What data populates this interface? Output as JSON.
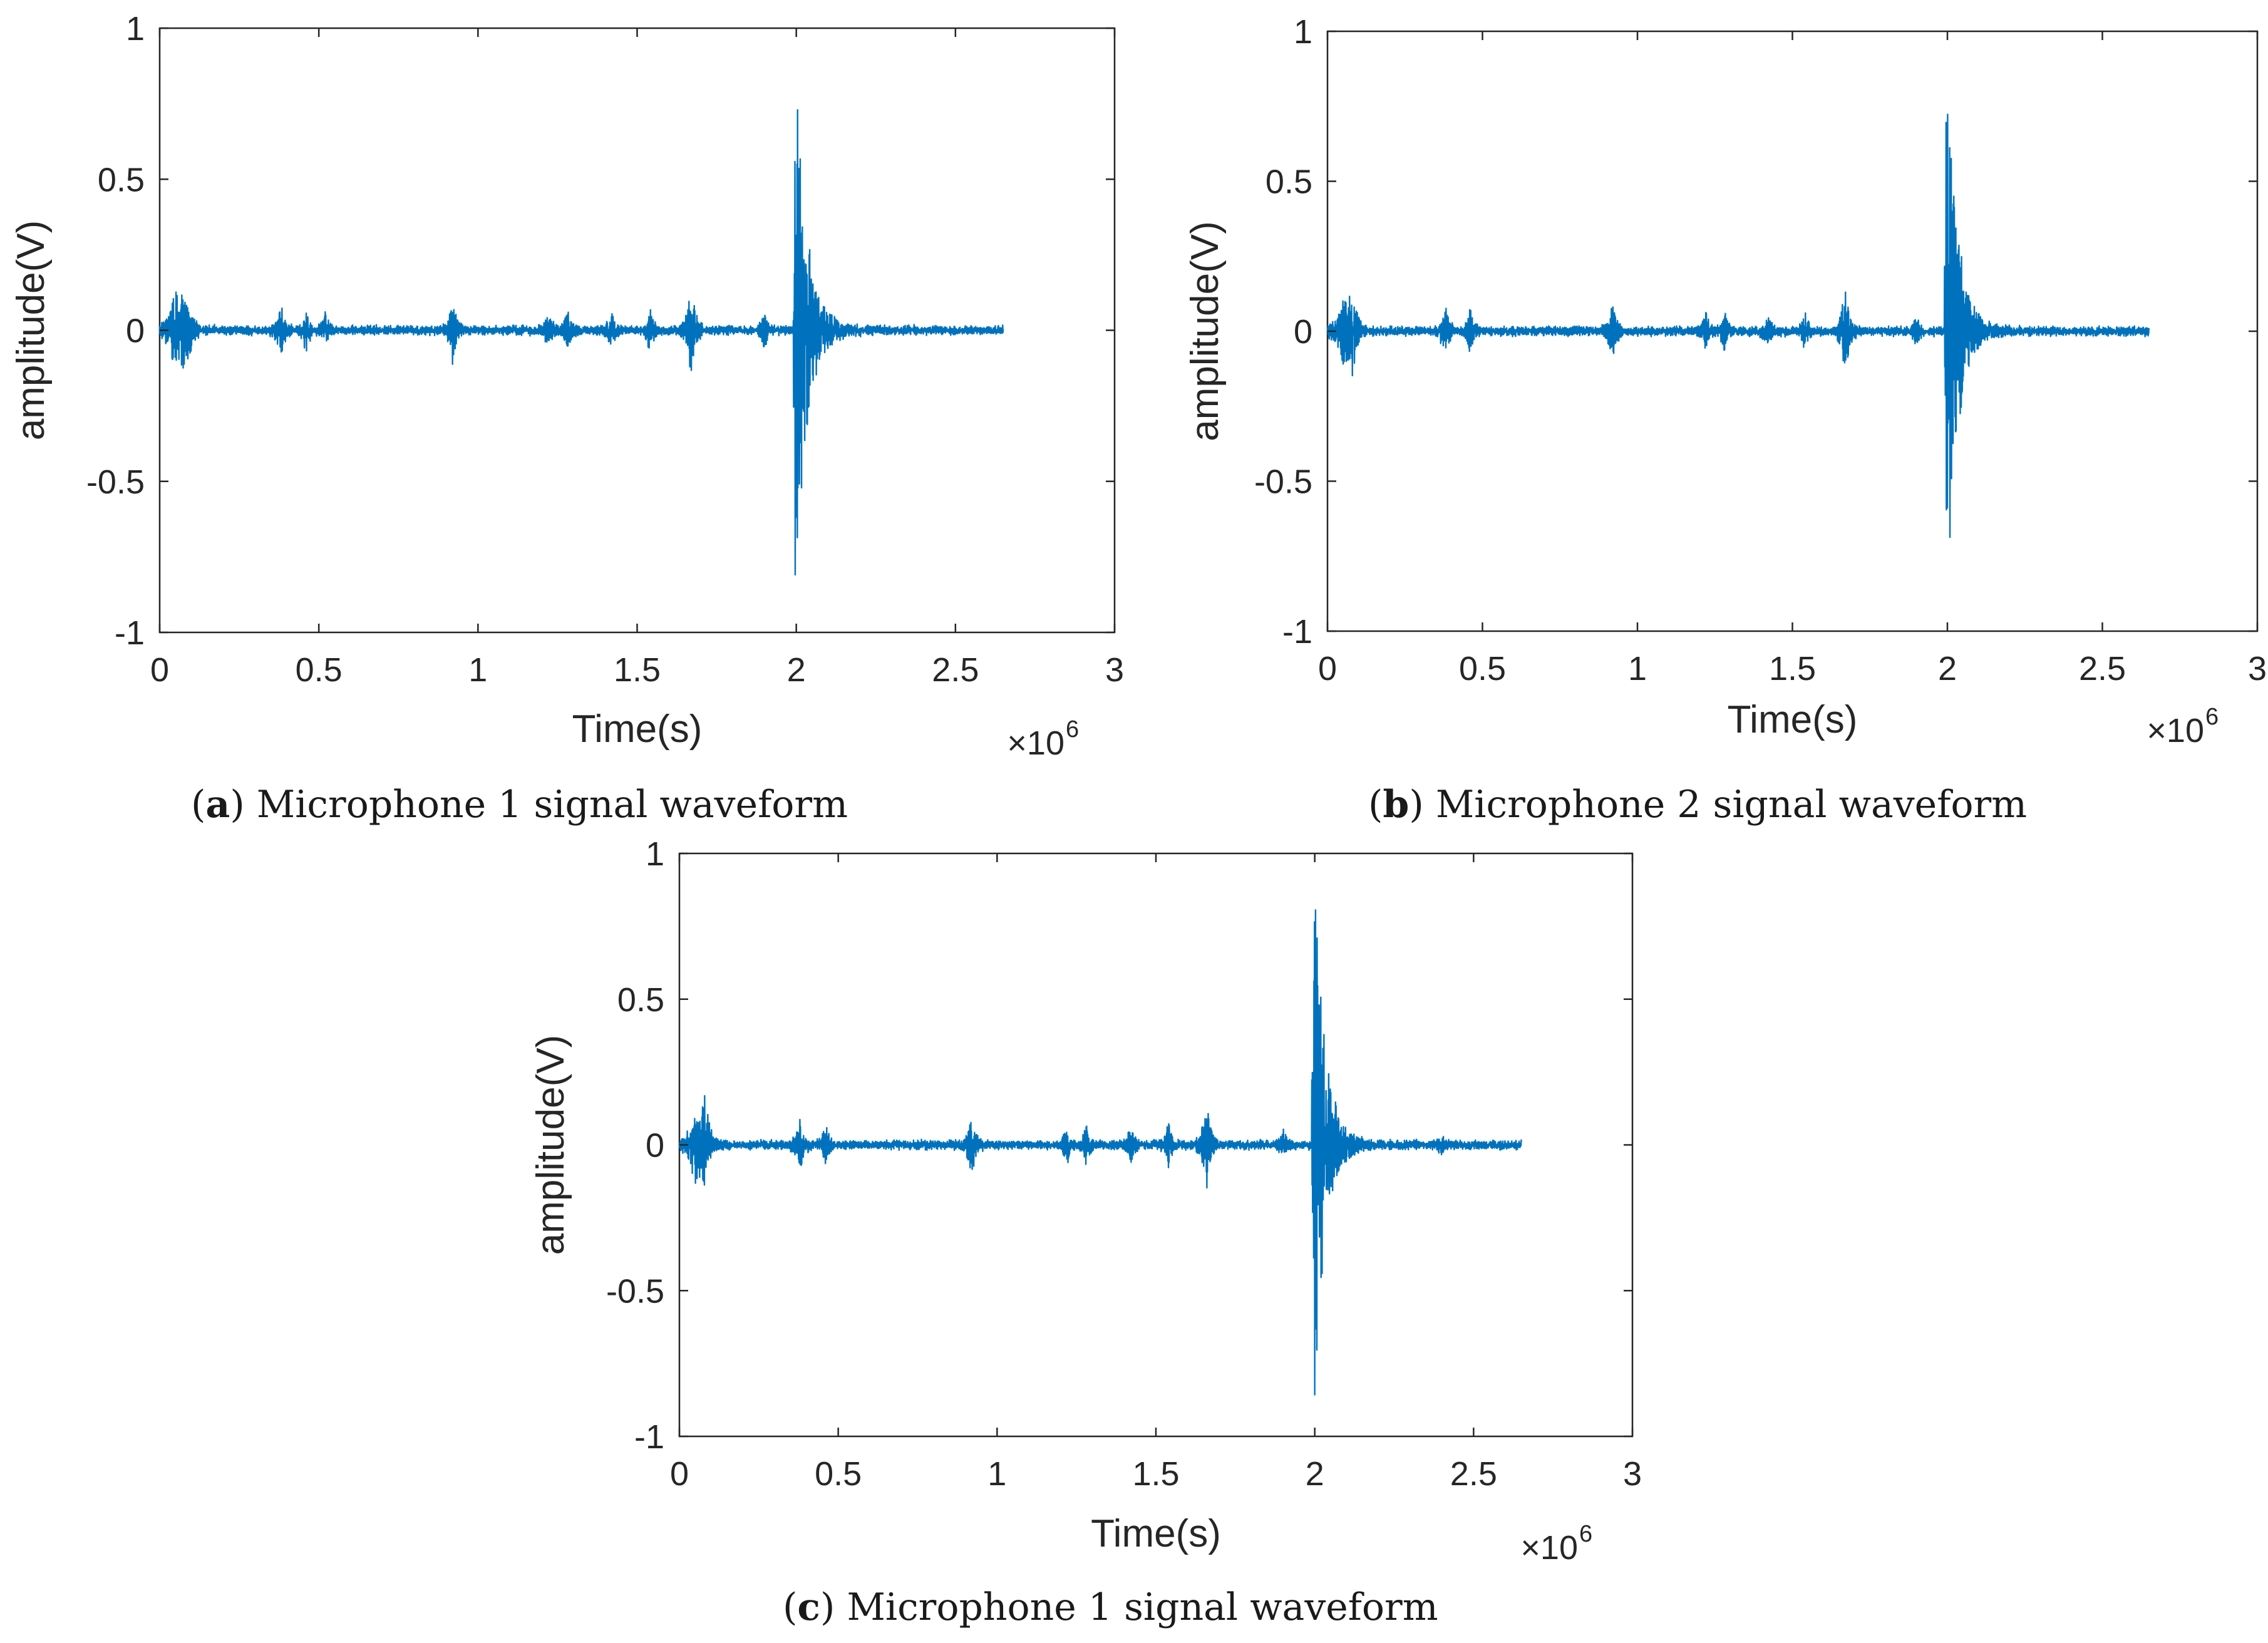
{
  "chart_data": [
    {
      "type": "line",
      "panel": "a",
      "caption_letter": "a",
      "caption_text": "Microphone 1 signal waveform",
      "xlabel": "Time(s)",
      "ylabel": "amplitude(V)",
      "x_exponent_label": "×10",
      "x_exponent_power": "6",
      "xlim": [
        0,
        3
      ],
      "ylim": [
        -1,
        1
      ],
      "x_ticks": [
        "0",
        "0.5",
        "1",
        "1.5",
        "2",
        "2.5",
        "3"
      ],
      "y_ticks": [
        "-1",
        "-0.5",
        "0",
        "0.5",
        "1"
      ],
      "x_tick_values": [
        0,
        0.5,
        1,
        1.5,
        2,
        2.5,
        3
      ],
      "y_tick_values": [
        -1,
        -0.5,
        0,
        0.5,
        1
      ],
      "grid": false,
      "line_color": "#0072BD",
      "signal_end": 2.65,
      "noise_level": 0.012,
      "bursts": [
        {
          "t": 0.05,
          "amp": 0.12,
          "width": 0.02
        },
        {
          "t": 0.08,
          "amp": 0.14,
          "width": 0.015
        },
        {
          "t": 0.38,
          "amp": 0.08,
          "width": 0.012
        },
        {
          "t": 0.46,
          "amp": 0.07,
          "width": 0.01
        },
        {
          "t": 0.52,
          "amp": 0.05,
          "width": 0.01
        },
        {
          "t": 0.92,
          "amp": 0.1,
          "width": 0.012
        },
        {
          "t": 1.22,
          "amp": 0.06,
          "width": 0.01
        },
        {
          "t": 1.28,
          "amp": 0.07,
          "width": 0.01
        },
        {
          "t": 1.42,
          "amp": 0.06,
          "width": 0.01
        },
        {
          "t": 1.54,
          "amp": 0.07,
          "width": 0.01
        },
        {
          "t": 1.67,
          "amp": 0.16,
          "width": 0.012
        },
        {
          "t": 1.9,
          "amp": 0.06,
          "width": 0.008
        }
      ],
      "impulse": {
        "t": 1.995,
        "amp": 1.0,
        "decay": 0.035
      }
    },
    {
      "type": "line",
      "panel": "b",
      "caption_letter": "b",
      "caption_text": "Microphone 2 signal waveform",
      "xlabel": "Time(s)",
      "ylabel": "amplitude(V)",
      "x_exponent_label": "×10",
      "x_exponent_power": "6",
      "xlim": [
        0,
        3
      ],
      "ylim": [
        -1,
        1
      ],
      "x_ticks": [
        "0",
        "0.5",
        "1",
        "1.5",
        "2",
        "2.5",
        "3"
      ],
      "y_ticks": [
        "-1",
        "-0.5",
        "0",
        "0.5",
        "1"
      ],
      "x_tick_values": [
        0,
        0.5,
        1,
        1.5,
        2,
        2.5,
        3
      ],
      "y_tick_values": [
        -1,
        -0.5,
        0,
        0.5,
        1
      ],
      "grid": false,
      "line_color": "#0072BD",
      "signal_end": 2.65,
      "noise_level": 0.012,
      "bursts": [
        {
          "t": 0.05,
          "amp": 0.1,
          "width": 0.02
        },
        {
          "t": 0.08,
          "amp": 0.12,
          "width": 0.015
        },
        {
          "t": 0.38,
          "amp": 0.08,
          "width": 0.012
        },
        {
          "t": 0.46,
          "amp": 0.07,
          "width": 0.01
        },
        {
          "t": 0.92,
          "amp": 0.1,
          "width": 0.012
        },
        {
          "t": 1.22,
          "amp": 0.06,
          "width": 0.01
        },
        {
          "t": 1.28,
          "amp": 0.07,
          "width": 0.01
        },
        {
          "t": 1.42,
          "amp": 0.06,
          "width": 0.01
        },
        {
          "t": 1.54,
          "amp": 0.06,
          "width": 0.01
        },
        {
          "t": 1.67,
          "amp": 0.16,
          "width": 0.012
        },
        {
          "t": 1.9,
          "amp": 0.05,
          "width": 0.008
        }
      ],
      "impulse": {
        "t": 1.995,
        "amp": 1.0,
        "decay": 0.035
      }
    },
    {
      "type": "line",
      "panel": "c",
      "caption_letter": "c",
      "caption_text": "Microphone 1 signal waveform",
      "xlabel": "Time(s)",
      "ylabel": "amplitude(V)",
      "x_exponent_label": "×10",
      "x_exponent_power": "6",
      "xlim": [
        0,
        3
      ],
      "ylim": [
        -1,
        1
      ],
      "x_ticks": [
        "0",
        "0.5",
        "1",
        "1.5",
        "2",
        "2.5",
        "3"
      ],
      "y_ticks": [
        "-1",
        "-0.5",
        "0",
        "0.5",
        "1"
      ],
      "x_tick_values": [
        0,
        0.5,
        1,
        1.5,
        2,
        2.5,
        3
      ],
      "y_tick_values": [
        -1,
        -0.5,
        0,
        0.5,
        1
      ],
      "grid": false,
      "line_color": "#0072BD",
      "signal_end": 2.65,
      "noise_level": 0.012,
      "bursts": [
        {
          "t": 0.05,
          "amp": 0.12,
          "width": 0.02
        },
        {
          "t": 0.08,
          "amp": 0.14,
          "width": 0.015
        },
        {
          "t": 0.38,
          "amp": 0.08,
          "width": 0.012
        },
        {
          "t": 0.46,
          "amp": 0.07,
          "width": 0.01
        },
        {
          "t": 0.92,
          "amp": 0.1,
          "width": 0.012
        },
        {
          "t": 1.22,
          "amp": 0.06,
          "width": 0.01
        },
        {
          "t": 1.28,
          "amp": 0.07,
          "width": 0.01
        },
        {
          "t": 1.42,
          "amp": 0.06,
          "width": 0.01
        },
        {
          "t": 1.54,
          "amp": 0.07,
          "width": 0.01
        },
        {
          "t": 1.66,
          "amp": 0.16,
          "width": 0.012
        },
        {
          "t": 1.9,
          "amp": 0.06,
          "width": 0.008
        },
        {
          "t": 2.4,
          "amp": 0.03,
          "width": 0.01
        }
      ],
      "impulse": {
        "t": 1.995,
        "amp": 1.0,
        "decay": 0.035
      }
    }
  ]
}
